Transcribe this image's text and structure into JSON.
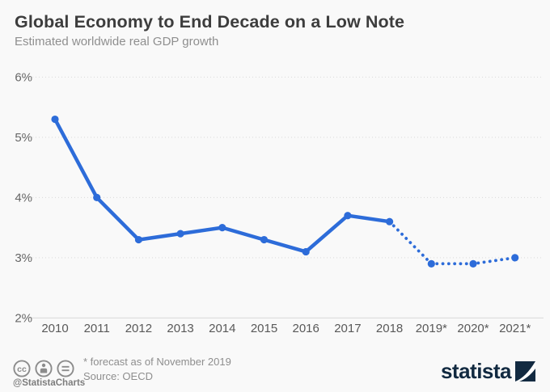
{
  "header": {
    "title": "Global Economy to End Decade on a Low Note",
    "subtitle": "Estimated worldwide real GDP growth"
  },
  "chart_data": {
    "type": "line",
    "title": "Global Economy to End Decade on a Low Note",
    "subtitle": "Estimated worldwide real GDP growth",
    "series_name": "Worldwide real GDP growth",
    "categories": [
      "2010",
      "2011",
      "2012",
      "2013",
      "2014",
      "2015",
      "2016",
      "2017",
      "2018",
      "2019*",
      "2020*",
      "2021*"
    ],
    "values": [
      5.3,
      4.0,
      3.3,
      3.4,
      3.5,
      3.3,
      3.1,
      3.7,
      3.6,
      2.9,
      2.9,
      3.0
    ],
    "forecast_from_index": 8,
    "unit": "%",
    "y_ticks": [
      {
        "label": "6%",
        "value": 6
      },
      {
        "label": "5%",
        "value": 5
      },
      {
        "label": "4%",
        "value": 4
      },
      {
        "label": "3%",
        "value": 3
      },
      {
        "label": "2%",
        "value": 2
      }
    ],
    "ylim": [
      2,
      6
    ],
    "grid": true,
    "legend": "none",
    "line_color": "#2d6cd9",
    "grid_color": "#d9d9d9",
    "axis_label_color": "#595959"
  },
  "footer": {
    "license_icons": [
      {
        "icon": "cc-icon",
        "glyph": "cc"
      },
      {
        "icon": "attribution-icon",
        "glyph": "person"
      },
      {
        "icon": "nd-icon",
        "glyph": "="
      }
    ],
    "handle": "@StatistaCharts",
    "footnote": "* forecast as of November 2019",
    "source": "Source: OECD",
    "brand_name": "statista"
  }
}
